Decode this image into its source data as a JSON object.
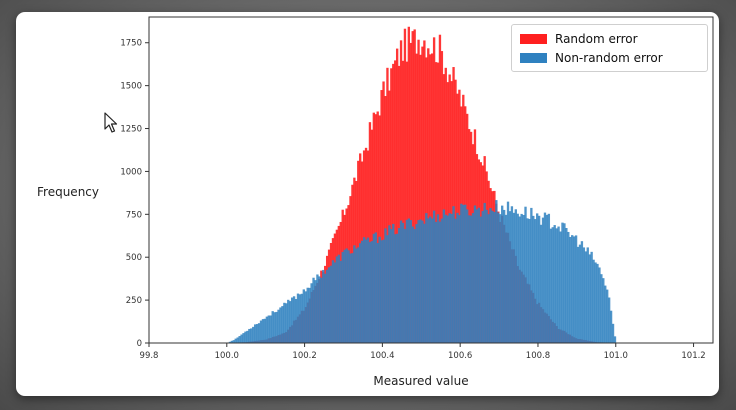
{
  "chart_data": {
    "type": "bar",
    "title": "",
    "xlabel": "Measured value",
    "ylabel": "Frequency",
    "xlim": [
      99.8,
      101.25
    ],
    "ylim": [
      0,
      1900
    ],
    "xticks": [
      "99.8",
      "100.0",
      "100.2",
      "100.4",
      "100.6",
      "100.8",
      "101.0",
      "101.2"
    ],
    "yticks": [
      "0",
      "250",
      "500",
      "750",
      "1000",
      "1250",
      "1500",
      "1750"
    ],
    "legend_position": "top-right",
    "bin_width": 0.005,
    "series": [
      {
        "name": "Random error",
        "color": "#ff2020",
        "opacity": 0.9,
        "x": [
          99.9,
          100.0,
          100.05,
          100.1,
          100.15,
          100.2,
          100.25,
          100.3,
          100.35,
          100.4,
          100.45,
          100.5,
          100.55,
          100.6,
          100.65,
          100.7,
          100.75,
          100.8,
          100.85,
          100.9,
          100.95,
          101.0,
          101.1
        ],
        "y": [
          0,
          0,
          5,
          20,
          60,
          200,
          450,
          750,
          1100,
          1450,
          1720,
          1790,
          1700,
          1430,
          1120,
          760,
          440,
          230,
          90,
          25,
          5,
          0,
          0
        ]
      },
      {
        "name": "Non-random error",
        "color": "#2f81c0",
        "opacity": 0.85,
        "x": [
          99.95,
          100.0,
          100.02,
          100.05,
          100.1,
          100.15,
          100.2,
          100.25,
          100.3,
          100.35,
          100.4,
          100.45,
          100.5,
          100.55,
          100.6,
          100.65,
          100.7,
          100.75,
          100.8,
          100.85,
          100.9,
          100.95,
          100.98,
          101.0,
          101.05
        ],
        "y": [
          0,
          0,
          20,
          70,
          150,
          225,
          310,
          420,
          520,
          580,
          630,
          680,
          720,
          750,
          770,
          780,
          790,
          770,
          740,
          690,
          600,
          470,
          300,
          0,
          0
        ]
      }
    ]
  },
  "outer_ylabel": "Frequency",
  "outer_xlabel": "Measured value"
}
